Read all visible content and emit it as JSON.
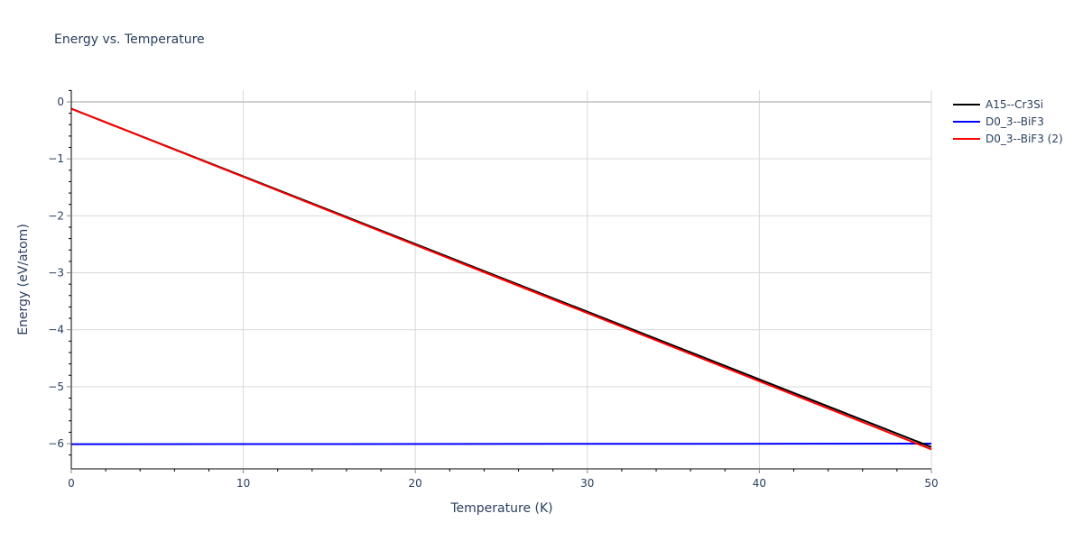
{
  "chart_data": {
    "type": "line",
    "title": "Energy vs. Temperature",
    "xlabel": "Temperature (K)",
    "ylabel": "Energy (eV/atom)",
    "xlim": [
      0,
      50
    ],
    "ylim": [
      -6.45,
      0.2
    ],
    "xticks": [
      0,
      10,
      20,
      30,
      40,
      50
    ],
    "yticks": [
      0,
      -1,
      -2,
      -3,
      -4,
      -5,
      -6
    ],
    "xtick_labels": [
      "0",
      "10",
      "20",
      "30",
      "40",
      "50"
    ],
    "ytick_labels": [
      "0",
      "−1",
      "−2",
      "−3",
      "−4",
      "−5",
      "−6"
    ],
    "grid": true,
    "legend_position": "right-top",
    "series": [
      {
        "name": "A15--Cr3Si",
        "color": "#000000",
        "x": [
          0,
          50
        ],
        "y": [
          -0.12,
          -6.06
        ]
      },
      {
        "name": "D0_3--BiF3",
        "color": "#0000ff",
        "x": [
          0,
          50
        ],
        "y": [
          -6.01,
          -6.0
        ]
      },
      {
        "name": "D0_3--BiF3 (2)",
        "color": "#ff0000",
        "x": [
          0,
          50
        ],
        "y": [
          -0.12,
          -6.1
        ]
      }
    ]
  },
  "colors": {
    "text": "#2a3f5f",
    "grid": "#d9d9d9",
    "axis": "#000000"
  }
}
